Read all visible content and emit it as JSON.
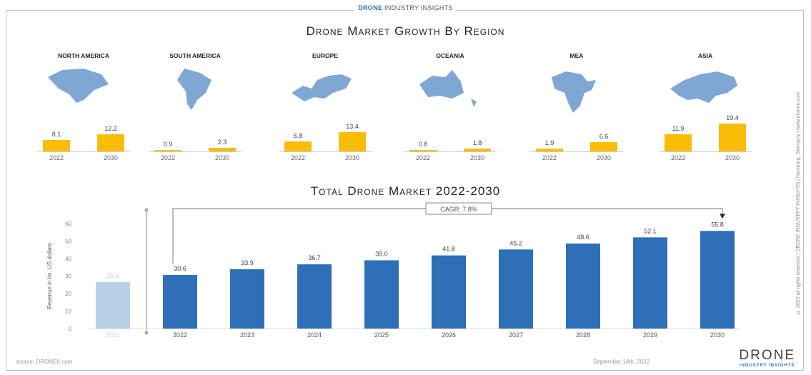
{
  "header": {
    "brand_bold": "DRONE",
    "brand_rest": " INDUSTRY INSIGHTS"
  },
  "colors": {
    "region_bar": "#f9bd08",
    "total_bar": "#2e6fb7",
    "total_bar_faded": "#b8d0e8",
    "map": "#7ea7d3"
  },
  "chart_data": [
    {
      "type": "bar",
      "title": "Drone Market Growth By Region",
      "categories": [
        "2022",
        "2030"
      ],
      "series": [
        {
          "name": "NORTH AMERICA",
          "values": [
            8.1,
            12.2
          ],
          "icon": "north-america-map-icon"
        },
        {
          "name": "SOUTH AMERICA",
          "values": [
            0.9,
            2.3
          ],
          "icon": "south-america-map-icon"
        },
        {
          "name": "EUROPE",
          "values": [
            6.8,
            13.4
          ],
          "icon": "europe-map-icon"
        },
        {
          "name": "OCEANIA",
          "values": [
            0.8,
            1.8
          ],
          "icon": "oceania-map-icon"
        },
        {
          "name": "MEA",
          "values": [
            1.9,
            6.6
          ],
          "icon": "mea-map-icon"
        },
        {
          "name": "ASIA",
          "values": [
            11.9,
            19.4
          ],
          "icon": "asia-map-icon"
        }
      ]
    },
    {
      "type": "bar",
      "title": "Total Drone Market 2022-2030",
      "categories": [
        "2021",
        "2022",
        "2023",
        "2024",
        "2025",
        "2026",
        "2027",
        "2028",
        "2029",
        "2030"
      ],
      "values": [
        26.6,
        30.6,
        33.9,
        36.7,
        39.0,
        41.8,
        45.2,
        48.6,
        52.1,
        55.8
      ],
      "value_labels": [
        "26.6",
        "30.6",
        "33.9",
        "36.7",
        "39.0",
        "41.8",
        "45.2",
        "48.6",
        "52.1",
        "55.8"
      ],
      "ylabel": "Revenue in bn. US dollars",
      "yticks": [
        0,
        10,
        20,
        30,
        40,
        50,
        60
      ],
      "ylim": [
        0,
        60
      ],
      "annotation": "CAGR: 7.8%",
      "grid": false
    }
  ],
  "side_text": "© 2022 all rights reserved | DRONE INDUSTRY INSIGHTS | Hamburg, Germany | www.droneii.com",
  "footer": {
    "source": "source: DRONEII.com",
    "date": "September 14th, 2022",
    "logo_main": "DRONE",
    "logo_sub": "INDUSTRY INSIGHTS"
  }
}
